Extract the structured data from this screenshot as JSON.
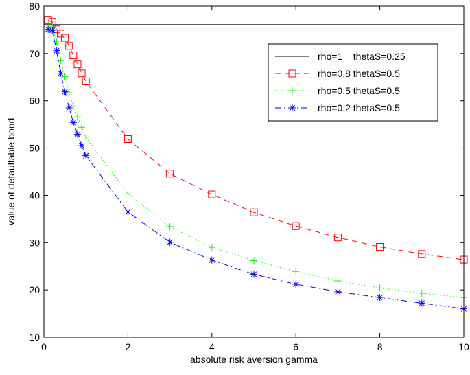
{
  "chart_data": {
    "type": "line",
    "title": "",
    "xlabel": "absolute risk aversion gamma",
    "ylabel": "value of defaultable bond",
    "xlim": [
      0,
      10
    ],
    "ylim": [
      10,
      80
    ],
    "xticks": [
      0,
      2,
      4,
      6,
      8,
      10
    ],
    "yticks": [
      10,
      20,
      30,
      40,
      50,
      60,
      70,
      80
    ],
    "grid": false,
    "legend_position": "top-right",
    "series": [
      {
        "name": "rho=1    thetaS=0.25",
        "color": "#000000",
        "line_style": "solid",
        "marker": "none",
        "x": [
          0,
          10
        ],
        "y": [
          76.1,
          76.1
        ]
      },
      {
        "name": "rho=0.8 thetaS=0.5",
        "color": "#ff0000",
        "line_style": "dashed",
        "marker": "square",
        "x": [
          0.1,
          0.2,
          0.3,
          0.4,
          0.5,
          0.6,
          0.7,
          0.8,
          0.9,
          1,
          2,
          3,
          4,
          5,
          6,
          7,
          8,
          9,
          10
        ],
        "y": [
          77.0,
          76.7,
          75.1,
          74.2,
          73.3,
          71.6,
          69.6,
          67.7,
          65.8,
          64.1,
          51.9,
          44.6,
          40.2,
          36.4,
          33.5,
          31.1,
          29.1,
          27.6,
          26.4
        ]
      },
      {
        "name": "rho=0.5 thetaS=0.5",
        "color": "#00ff00",
        "line_style": "dotted",
        "marker": "plus",
        "x": [
          0.1,
          0.2,
          0.3,
          0.4,
          0.5,
          0.6,
          0.7,
          0.8,
          0.9,
          1,
          2,
          3,
          4,
          5,
          6,
          7,
          8,
          9,
          10
        ],
        "y": [
          76.0,
          75.6,
          72.6,
          68.5,
          65.1,
          61.7,
          58.9,
          56.6,
          54.4,
          52.3,
          40.3,
          33.4,
          29.0,
          26.2,
          23.9,
          21.9,
          20.4,
          19.3,
          18.4
        ]
      },
      {
        "name": "rho=0.2 thetaS=0.5",
        "color": "#0000ff",
        "line_style": "dashdot",
        "marker": "asterisk",
        "x": [
          0.1,
          0.2,
          0.3,
          0.4,
          0.5,
          0.6,
          0.7,
          0.8,
          0.9,
          1,
          2,
          3,
          4,
          5,
          6,
          7,
          8,
          9,
          10
        ],
        "y": [
          75.1,
          74.9,
          70.6,
          65.8,
          61.9,
          58.5,
          55.4,
          52.9,
          50.5,
          48.4,
          36.5,
          30.1,
          26.3,
          23.3,
          21.2,
          19.6,
          18.4,
          17.2,
          16.0
        ]
      }
    ]
  }
}
